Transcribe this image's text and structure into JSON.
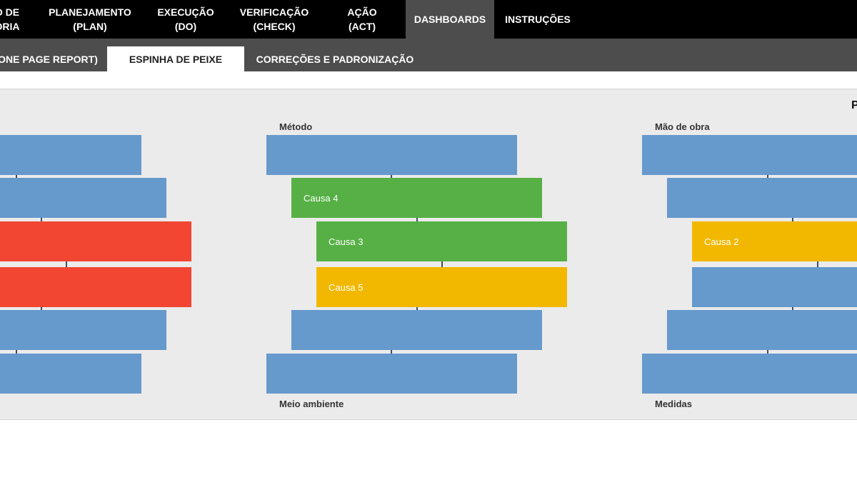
{
  "topnav": [
    {
      "label": "O DE\nORIA",
      "active": false
    },
    {
      "label": "PLANEJAMENTO\n(PLAN)",
      "active": false
    },
    {
      "label": "EXECUÇÃO\n(DO)",
      "active": false
    },
    {
      "label": "VERIFICAÇÃO\n(CHECK)",
      "active": false
    },
    {
      "label": "AÇÃO\n(ACT)",
      "active": false
    },
    {
      "label": "DASHBOARDS",
      "active": true
    },
    {
      "label": "INSTRUÇÕES",
      "active": false
    }
  ],
  "subtabs": [
    {
      "label": "ONE PAGE REPORT)",
      "active": false
    },
    {
      "label": "ESPINHA DE PEIXE",
      "active": true
    },
    {
      "label": "CORREÇÕES E PADRONIZAÇÃO",
      "active": false
    }
  ],
  "corner_title": "P",
  "fishbone": {
    "left": {
      "causes": [
        "",
        "",
        "",
        "",
        "",
        ""
      ]
    },
    "middle": {
      "top_label": "Método",
      "bottom_label": "Meio ambiente",
      "causes": [
        "",
        "Causa 4",
        "Causa 3",
        "Causa 5",
        "",
        ""
      ]
    },
    "right": {
      "top_label": "Mão de obra",
      "bottom_label": "Medidas",
      "causes": [
        "",
        "",
        "Causa 2",
        "",
        "",
        ""
      ]
    }
  },
  "colors": {
    "blue": "#6699cc",
    "green": "#56b045",
    "yellow": "#f2b800",
    "red": "#f24632",
    "spine": "#3b4f66",
    "left_bars": [
      "blue",
      "blue",
      "red",
      "red",
      "blue",
      "blue"
    ],
    "middle_bars": [
      "blue",
      "green",
      "green",
      "yellow",
      "blue",
      "blue"
    ],
    "right_bars": [
      "blue",
      "blue",
      "yellow",
      "blue",
      "blue",
      "blue"
    ]
  }
}
